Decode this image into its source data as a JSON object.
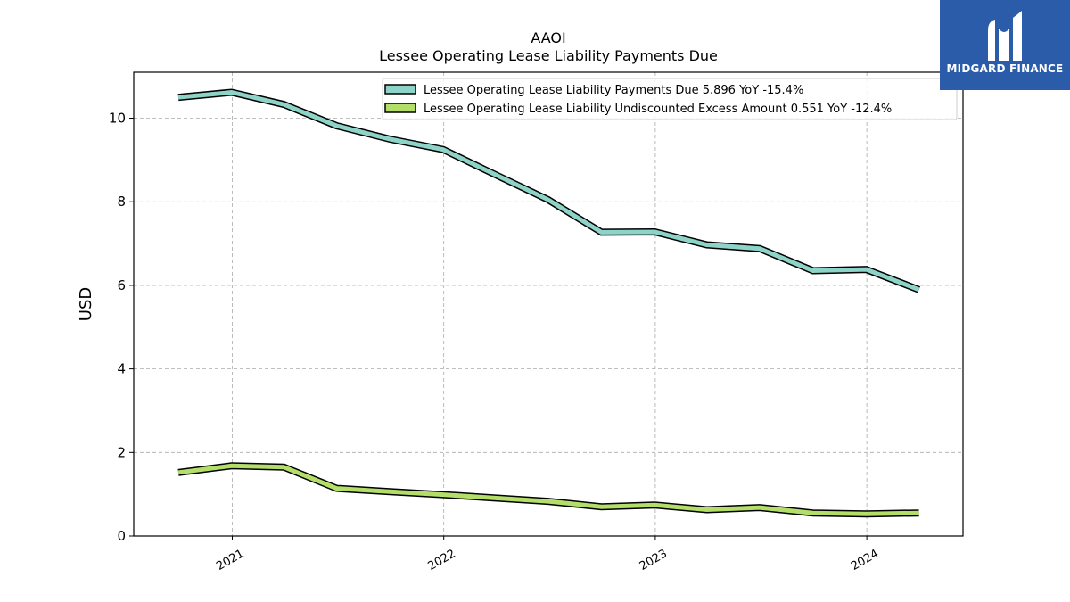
{
  "brand": {
    "name": "MIDGARD FINANCE",
    "logo_icon": "midgard-m-logo-icon",
    "background_color": "#2a5caa"
  },
  "chart_data": {
    "type": "line",
    "title": "AAOI",
    "subtitle": "Lessee Operating Lease Liability Payments Due",
    "xlabel": "",
    "ylabel": "USD",
    "xlim": [
      "2020-07-15",
      "2024-06-15"
    ],
    "ylim": [
      0,
      11.1
    ],
    "x_ticks": [
      {
        "date": "2021-01-01",
        "label": "2021"
      },
      {
        "date": "2022-01-01",
        "label": "2022"
      },
      {
        "date": "2023-01-01",
        "label": "2023"
      },
      {
        "date": "2024-01-01",
        "label": "2024"
      }
    ],
    "y_ticks": [
      0,
      2,
      4,
      6,
      8,
      10
    ],
    "grid": true,
    "legend_position": "top-right",
    "x": [
      "2020-09-30",
      "2020-12-31",
      "2021-03-31",
      "2021-06-30",
      "2021-09-30",
      "2021-12-31",
      "2022-03-31",
      "2022-06-30",
      "2022-09-30",
      "2022-12-31",
      "2023-03-31",
      "2023-06-30",
      "2023-09-30",
      "2023-12-31",
      "2024-03-31"
    ],
    "series": [
      {
        "name": "Lessee Operating Lease Liability Payments Due",
        "legend_label": "Lessee Operating Lease Liability Payments Due  5.896 YoY -15.4%",
        "color": "#8dd3c7",
        "values": [
          10.5,
          10.62,
          10.33,
          9.82,
          9.5,
          9.25,
          8.65,
          8.05,
          7.27,
          7.28,
          6.97,
          6.88,
          6.35,
          6.38,
          5.896
        ]
      },
      {
        "name": "Lessee Operating Lease Liability Undiscounted Excess Amount",
        "legend_label": "Lessee Operating Lease Liability Undiscounted Excess Amount  0.551 YoY -12.4%",
        "color": "#b3de69",
        "values": [
          1.52,
          1.68,
          1.65,
          1.14,
          1.06,
          0.99,
          0.91,
          0.83,
          0.7,
          0.74,
          0.63,
          0.68,
          0.55,
          0.53,
          0.551
        ]
      }
    ]
  }
}
